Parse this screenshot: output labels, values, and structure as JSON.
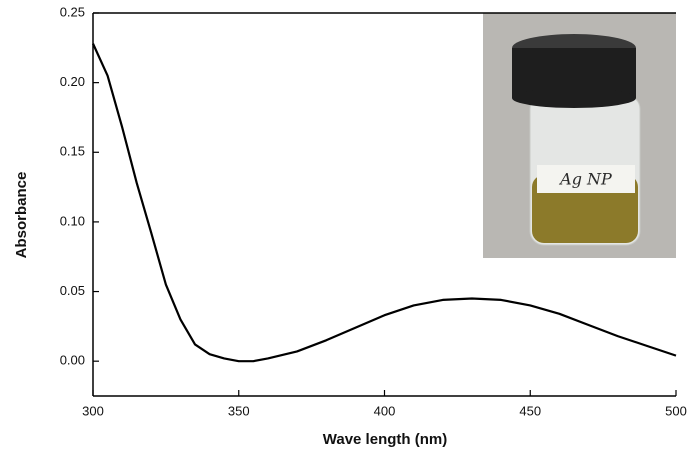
{
  "chart_data": {
    "type": "line",
    "x_label": "Wave length (nm)",
    "y_label": "Absorbance",
    "inset_label": "Ag NP",
    "x": [
      300,
      305,
      310,
      315,
      320,
      325,
      330,
      335,
      340,
      345,
      350,
      355,
      360,
      370,
      380,
      390,
      400,
      410,
      420,
      430,
      440,
      450,
      460,
      470,
      480,
      490,
      500
    ],
    "values": [
      0.228,
      0.205,
      0.168,
      0.128,
      0.092,
      0.055,
      0.03,
      0.012,
      0.005,
      0.002,
      0.0,
      0.0,
      0.002,
      0.007,
      0.015,
      0.024,
      0.033,
      0.04,
      0.044,
      0.045,
      0.044,
      0.04,
      0.034,
      0.026,
      0.018,
      0.011,
      0.004
    ],
    "color": "#000000",
    "xlim": [
      300,
      500
    ],
    "xticks": [
      300,
      350,
      400,
      450,
      500
    ],
    "ylim": [
      -0.025,
      0.25
    ],
    "yticks": [
      {
        "value": 0.0,
        "label": "0.00"
      },
      {
        "value": 0.05,
        "label": "0.05"
      },
      {
        "value": 0.1,
        "label": "0.10"
      },
      {
        "value": 0.15,
        "label": "0.15"
      },
      {
        "value": 0.2,
        "label": "0.20"
      },
      {
        "value": 0.25,
        "label": "0.25"
      }
    ],
    "grid": false
  }
}
